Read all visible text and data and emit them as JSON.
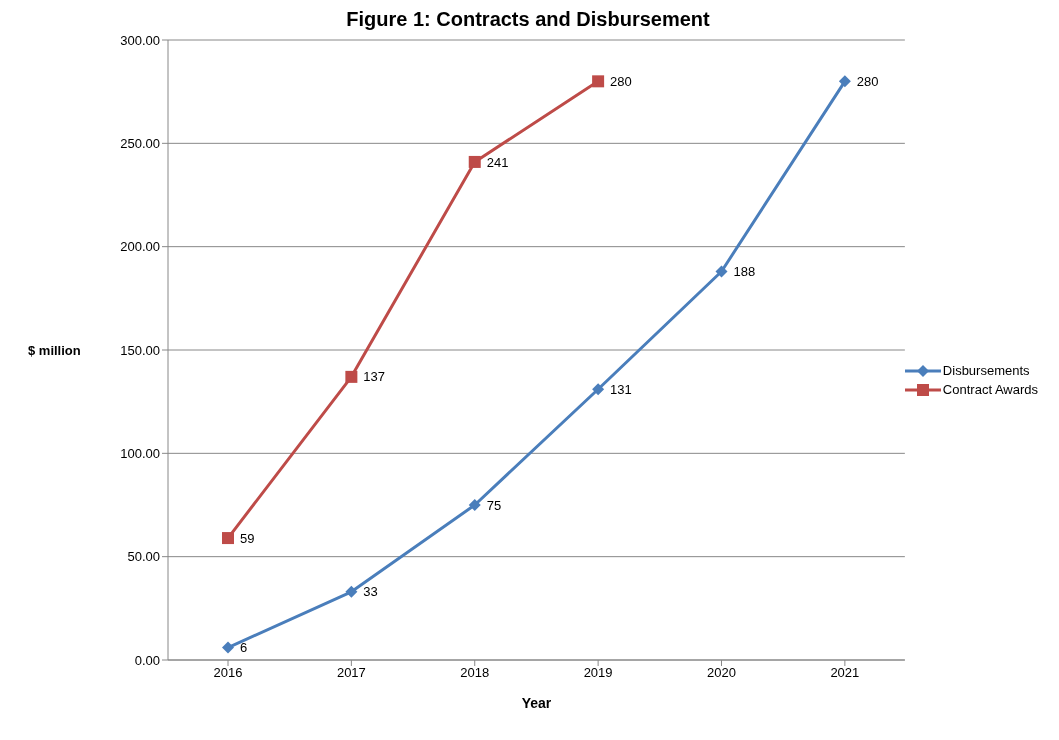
{
  "chart_data": {
    "type": "line",
    "title": "Figure 1: Contracts and Disbursement",
    "xlabel": "Year",
    "ylabel": "$ million",
    "categories": [
      "2016",
      "2017",
      "2018",
      "2019",
      "2020",
      "2021"
    ],
    "series": [
      {
        "name": "Disbursements",
        "color": "#4a7ebb",
        "marker": "diamond",
        "values": [
          6,
          33,
          75,
          131,
          188,
          280
        ]
      },
      {
        "name": "Contract Awards",
        "color": "#be4b48",
        "marker": "square",
        "values": [
          59,
          137,
          241,
          280,
          null,
          null
        ]
      }
    ],
    "ylim": [
      0,
      300
    ],
    "yticks": [
      {
        "value": 0,
        "label": "0.00"
      },
      {
        "value": 50,
        "label": "50.00"
      },
      {
        "value": 100,
        "label": "100.00"
      },
      {
        "value": 150,
        "label": "150.00"
      },
      {
        "value": 200,
        "label": "200.00"
      },
      {
        "value": 250,
        "label": "250.00"
      },
      {
        "value": 300,
        "label": "300.00"
      }
    ],
    "grid": "y",
    "legend": "right",
    "data_labels": true,
    "line_style": "solid"
  }
}
